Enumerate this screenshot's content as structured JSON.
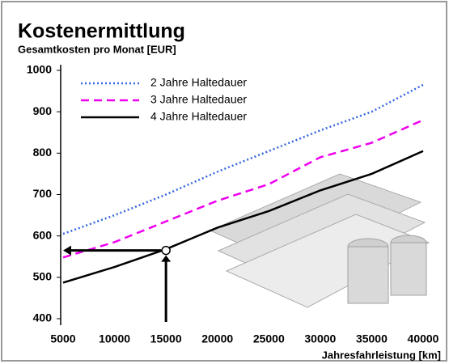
{
  "chart_data": {
    "type": "line",
    "title": "Kostenermittlung",
    "subtitle": "Gesamtkosten pro Monat [EUR]",
    "x_label": "Jahresfahrleistung [km]",
    "x": [
      5000,
      10000,
      15000,
      20000,
      25000,
      30000,
      35000,
      40000
    ],
    "series": [
      {
        "name": "2 Jahre Haltedauer",
        "color": "#3366dd",
        "style": "dotted",
        "values": [
          605,
          650,
          700,
          755,
          805,
          855,
          900,
          965
        ]
      },
      {
        "name": "3 Jahre Haltedauer",
        "color": "#ee00ee",
        "style": "dashed",
        "values": [
          548,
          585,
          635,
          685,
          725,
          790,
          825,
          880
        ]
      },
      {
        "name": "4 Jahre Haltedauer",
        "color": "#000000",
        "style": "solid",
        "values": [
          487,
          525,
          568,
          620,
          660,
          710,
          750,
          805
        ]
      }
    ],
    "marker": {
      "x": 15000,
      "y": 565
    },
    "xlim": [
      5000,
      40000
    ],
    "xticks": [
      5000,
      10000,
      15000,
      20000,
      25000,
      30000,
      35000,
      40000
    ],
    "ylim": [
      400,
      1000
    ],
    "yticks": [
      400,
      500,
      600,
      700,
      800,
      900,
      1000
    ],
    "grid": false,
    "legend": "top-left"
  }
}
